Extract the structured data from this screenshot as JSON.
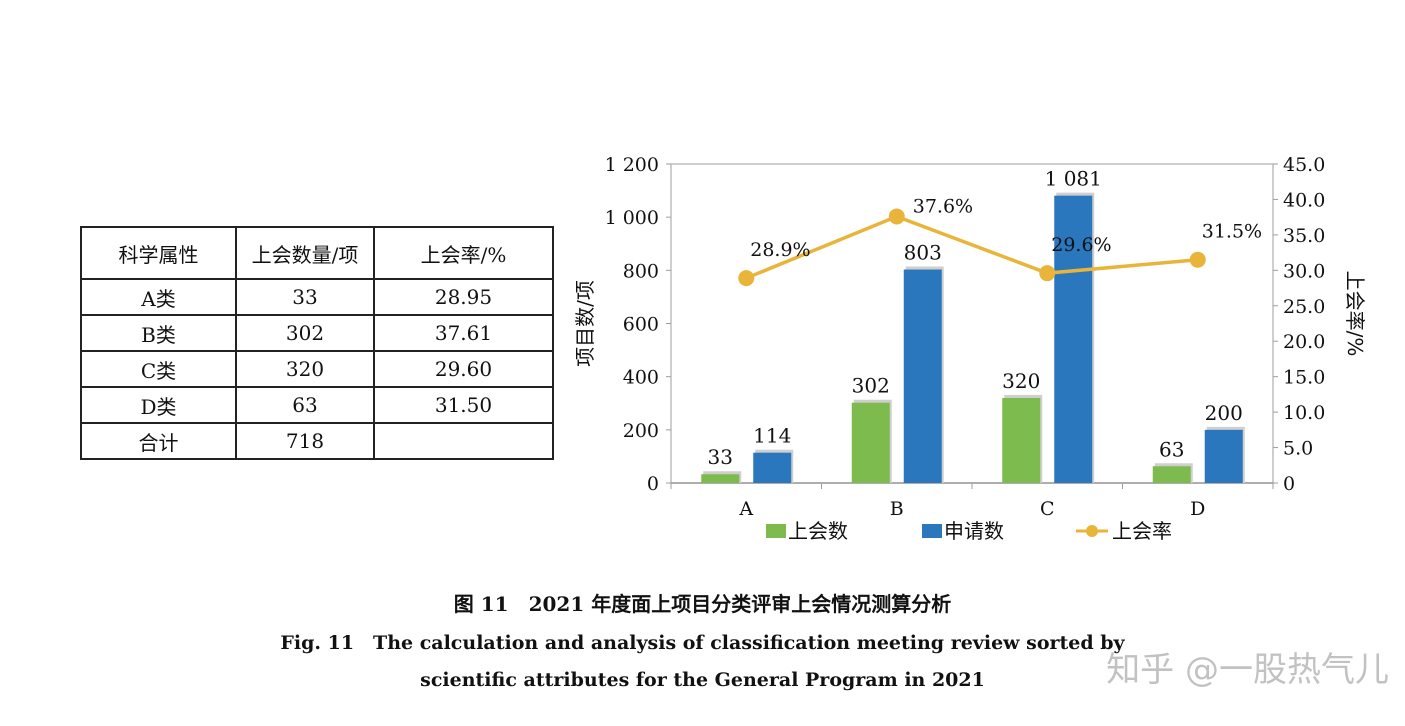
{
  "table": {
    "headers": [
      "科学属性",
      "上会数量/项",
      "上会率/%"
    ],
    "rows": [
      [
        "A类",
        "33",
        "28.95"
      ],
      [
        "B类",
        "302",
        "37.61"
      ],
      [
        "C类",
        "320",
        "29.60"
      ],
      [
        "D类",
        "63",
        "31.50"
      ],
      [
        "合计",
        "718",
        ""
      ]
    ]
  },
  "chart_data": {
    "type": "bar",
    "categories": [
      "A",
      "B",
      "C",
      "D"
    ],
    "series": [
      {
        "name": "上会数",
        "kind": "bar",
        "axis": "left",
        "color": "#7dbb4f",
        "values": [
          33,
          302,
          320,
          63
        ],
        "labels": [
          "33",
          "302",
          "320",
          "63"
        ]
      },
      {
        "name": "申请数",
        "kind": "bar",
        "axis": "left",
        "color": "#2a77bd",
        "values": [
          114,
          803,
          1081,
          200
        ],
        "labels": [
          "114",
          "803",
          "1 081",
          "200"
        ]
      },
      {
        "name": "上会率",
        "kind": "line",
        "axis": "right",
        "color": "#e8b43a",
        "values": [
          28.9,
          37.6,
          29.6,
          31.5
        ],
        "labels": [
          "28.9%",
          "37.6%",
          "29.6%",
          "31.5%"
        ]
      }
    ],
    "ylabel": "项目数/项",
    "y2label": "上会率/%",
    "ylim": [
      0,
      1200
    ],
    "y2lim": [
      0,
      45
    ],
    "yticks": [
      0,
      200,
      400,
      600,
      800,
      1000,
      1200
    ],
    "ytick_labels": [
      "0",
      "200",
      "400",
      "600",
      "800",
      "1 000",
      "1 200"
    ],
    "y2ticks": [
      0,
      5,
      10,
      15,
      20,
      25,
      30,
      35,
      40,
      45
    ],
    "y2tick_labels": [
      "0",
      "5.0",
      "10.0",
      "15.0",
      "20.0",
      "25.0",
      "30.0",
      "35.0",
      "40.0",
      "45.0"
    ],
    "grid": false,
    "legend_placement": "bottom"
  },
  "caption": {
    "zh": "图 11　2021 年度面上项目分类评审上会情况测算分析",
    "en_line1": "Fig. 11　The calculation and analysis of classification meeting review sorted by",
    "en_line2": "scientific attributes for the General Program in 2021"
  },
  "watermark": "知乎 @一股热气儿"
}
